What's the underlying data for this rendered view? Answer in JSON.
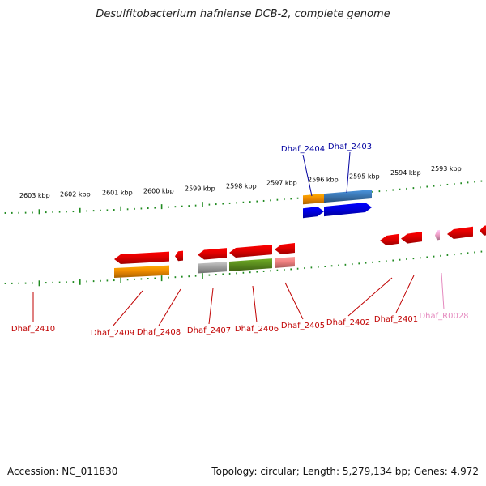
{
  "title": "Desulfitobacterium hafniense DCB-2, complete genome",
  "footer": {
    "accession": "Accession: NC_011830",
    "summary": "Topology: circular; Length: 5,279,134 bp; Genes: 4,972"
  },
  "colors": {
    "backbone": "#7f7f7f",
    "tick": "#1f8a1f",
    "forward_label": "#0000a0",
    "reverse_label": "#c00000",
    "rna_label": "#e58abf"
  },
  "scale_labels": [
    "2603 kbp",
    "2602 kbp",
    "2601 kbp",
    "2600 kbp",
    "2599 kbp",
    "2598 kbp",
    "2597 kbp",
    "2596 kbp",
    "2595 kbp",
    "2594 kbp",
    "2593 kbp"
  ],
  "genes_forward": [
    {
      "name": "Dhaf_2404",
      "cog_color": "#f08c00",
      "cds_color": "#0000e0"
    },
    {
      "name": "Dhaf_2403",
      "cog_color": "#3c78b4",
      "cds_color": "#0000e0"
    }
  ],
  "genes_reverse": [
    {
      "name": "Dhaf_2410",
      "cog_color": "#e0188c",
      "cds_color": "#e00000"
    },
    {
      "name": "Dhaf_2409",
      "cog_color": "#f08c00",
      "cds_color": "#e00000"
    },
    {
      "name": "Dhaf_2408",
      "cog_color": "",
      "cds_color": "#e00000"
    },
    {
      "name": "Dhaf_2407",
      "cog_color": "#a0a0a0",
      "cds_color": "#e00000"
    },
    {
      "name": "Dhaf_2406",
      "cog_color": "#5a8c1e",
      "cds_color": "#e00000"
    },
    {
      "name": "Dhaf_2405",
      "cog_color": "#f08080",
      "cds_color": "#e00000"
    },
    {
      "name": "Dhaf_2402",
      "cog_color": "",
      "cds_color": "#e00000"
    },
    {
      "name": "Dhaf_2401",
      "cog_color": "",
      "cds_color": "#e00000"
    },
    {
      "name": "Dhaf_R0028",
      "cog_color": "",
      "cds_color": "#f0a0c8"
    }
  ]
}
